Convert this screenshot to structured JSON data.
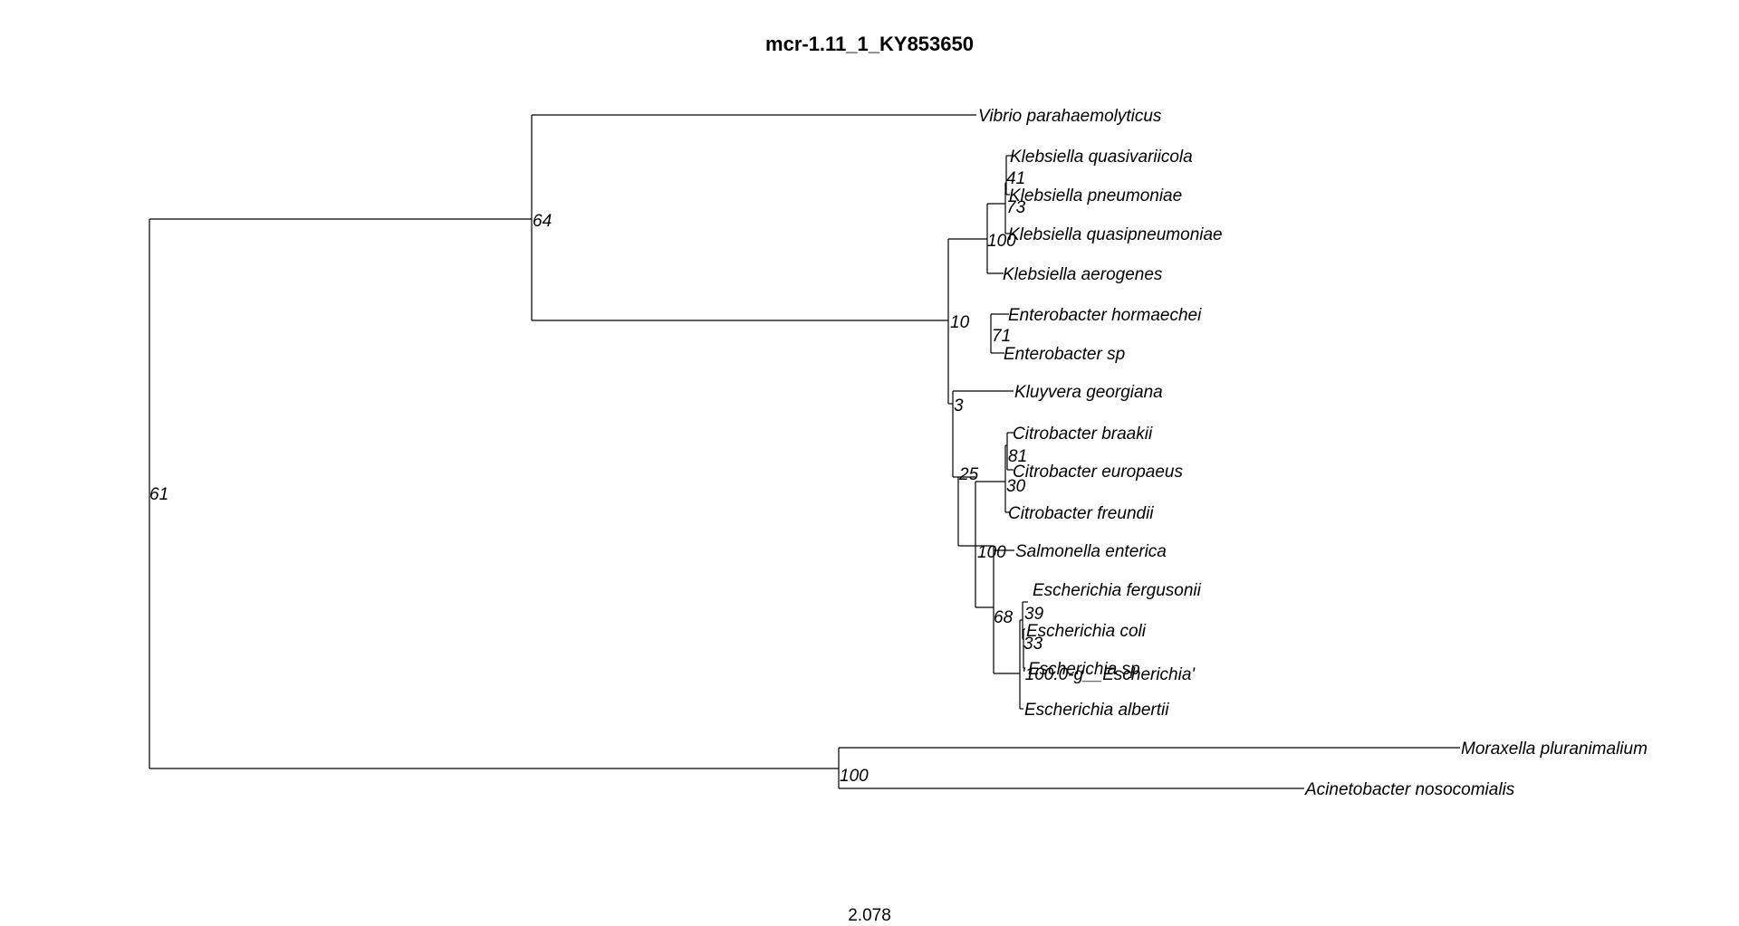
{
  "title": "mcr-1.11_1_KY853650",
  "scale_label": "2.078",
  "tips": {
    "vibrio": "Vibrio parahaemolyticus",
    "kqv": "Klebsiella quasivariicola",
    "kpn": "Klebsiella pneumoniae",
    "kqp": "Klebsiella quasipneumoniae",
    "kae": "Klebsiella aerogenes",
    "eho": "Enterobacter hormaechei",
    "esp": "Enterobacter sp",
    "kge": "Kluyvera georgiana",
    "cbr": "Citrobacter braakii",
    "ceu": "Citrobacter europaeus",
    "cfr": "Citrobacter freundii",
    "sen": "Salmonella enterica",
    "efe": "Escherichia fergusonii",
    "eco": "Escherichia coli",
    "escsp": "Escherichia sp",
    "eg": "'100.0-g__Escherichia'",
    "eal": "Escherichia albertii",
    "mpl": "Moraxella pluranimalium",
    "ano": "Acinetobacter nosocomialis"
  },
  "nodes": {
    "root": "61",
    "n64": "64",
    "n10": "10",
    "kleb": "100",
    "k73": "73",
    "k41": "41",
    "ent": "71",
    "n3": "3",
    "n25": "25",
    "cit100": "100",
    "c30": "30",
    "c81": "81",
    "n68": "68",
    "e33": "33",
    "e39": "39",
    "mor": "100"
  }
}
